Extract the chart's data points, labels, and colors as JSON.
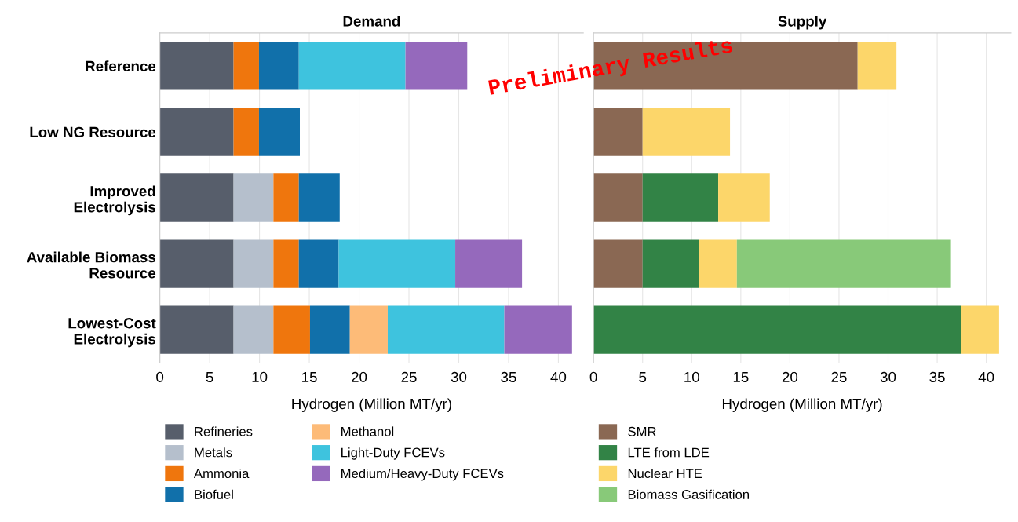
{
  "chart_data": [
    {
      "type": "bar",
      "orientation": "horizontal",
      "stacked": true,
      "title": "Demand",
      "xlabel": "Hydrogen (Million MT/yr)",
      "categories": [
        "Reference",
        "Low NG Resource",
        "Improved\nElectrolysis",
        "Available Biomass\nResource",
        "Lowest-Cost\nElectrolysis"
      ],
      "series": [
        {
          "name": "Refineries",
          "color": "#575e6b",
          "values": [
            7.4,
            7.4,
            7.4,
            7.4,
            7.4
          ]
        },
        {
          "name": "Metals",
          "color": "#b5bfcc",
          "values": [
            null,
            null,
            4.0,
            4.0,
            4.0
          ]
        },
        {
          "name": "Ammonia",
          "color": "#ef760d",
          "values": [
            2.55,
            2.55,
            2.55,
            2.55,
            3.67
          ]
        },
        {
          "name": "Biofuel",
          "color": "#1170aa",
          "values": [
            4.0,
            4.1,
            4.1,
            4.0,
            4.0
          ]
        },
        {
          "name": "Methanol",
          "color": "#fdbb78",
          "values": [
            null,
            null,
            null,
            null,
            3.8
          ]
        },
        {
          "name": "Light-Duty FCEVs",
          "color": "#3ec3de",
          "values": [
            10.7,
            null,
            null,
            11.7,
            11.7
          ]
        },
        {
          "name": "Medium/Heavy-Duty FCEVs",
          "color": "#9569bc",
          "values": [
            6.2,
            null,
            null,
            6.7,
            6.8
          ]
        }
      ],
      "xlim": [
        0,
        42.5
      ],
      "xticks": [
        0,
        5,
        10,
        15,
        20,
        25,
        30,
        35,
        40
      ],
      "grid": "x",
      "legend": "bottom"
    },
    {
      "type": "bar",
      "orientation": "horizontal",
      "stacked": true,
      "title": "Supply",
      "xlabel": "Hydrogen (Million MT/yr)",
      "categories": [
        null,
        null,
        null,
        null,
        null
      ],
      "series": [
        {
          "name": "SMR",
          "color": "#8a6853",
          "values": [
            26.9,
            5.0,
            5.0,
            5.0,
            null
          ]
        },
        {
          "name": "LTE from LDE",
          "color": "#328346",
          "values": [
            null,
            null,
            7.7,
            5.7,
            37.4
          ]
        },
        {
          "name": "Nuclear HTE",
          "color": "#fcd66a",
          "values": [
            3.95,
            8.9,
            5.25,
            3.9,
            3.9
          ]
        },
        {
          "name": "Biomass Gasification",
          "color": "#88c979",
          "values": [
            null,
            null,
            null,
            21.8,
            null
          ]
        }
      ],
      "xlim": [
        0,
        42.5
      ],
      "xticks": [
        0,
        5,
        10,
        15,
        20,
        25,
        30,
        35,
        40
      ],
      "grid": "x",
      "legend": "bottom",
      "annotations": [
        "Preliminary Results"
      ]
    }
  ]
}
